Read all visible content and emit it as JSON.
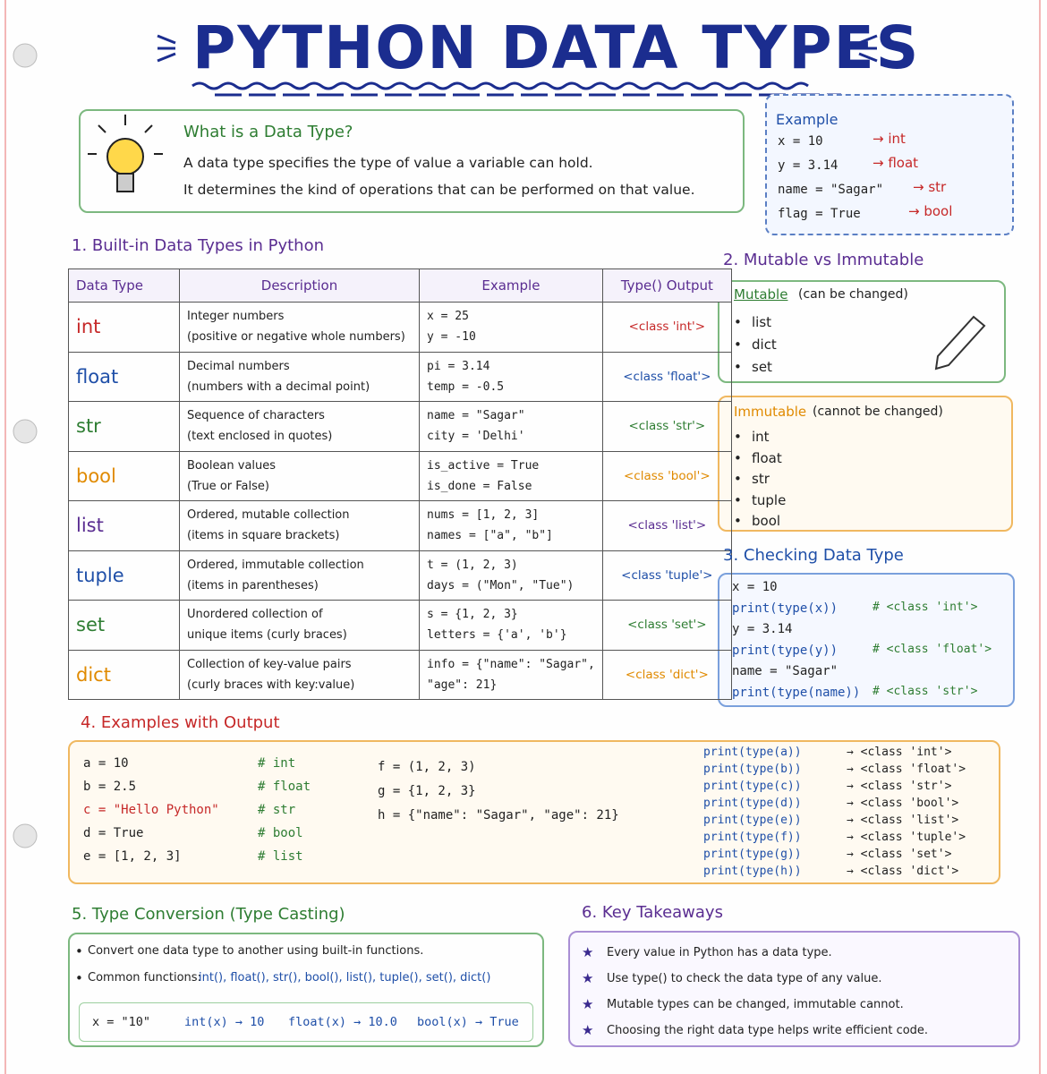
{
  "title": "PYTHON DATA TYPES",
  "intro": {
    "heading": "What is a Data Type?",
    "lines": [
      "A data type specifies the type of value a variable can hold.",
      "It determines the kind of operations that can be performed on that value."
    ]
  },
  "example": {
    "heading": "Example",
    "rows": [
      [
        "x = 10",
        "→ int"
      ],
      [
        "y = 3.14",
        "→ float"
      ],
      [
        "name = \"Sagar\"",
        "→ str"
      ],
      [
        "flag = True",
        "→ bool"
      ]
    ]
  },
  "builtin": {
    "heading": "1. Built-in Data Types in Python",
    "columns": [
      "Data Type",
      "Description",
      "Example",
      "Type() Output"
    ],
    "rows": [
      {
        "type": "int",
        "desc": [
          "Integer numbers",
          "(positive or negative whole numbers)"
        ],
        "example": [
          "x = 25",
          "y = -10"
        ],
        "output": "<class 'int'>"
      },
      {
        "type": "float",
        "desc": [
          "Decimal numbers",
          "(numbers with a decimal point)"
        ],
        "example": [
          "pi = 3.14",
          "temp = -0.5"
        ],
        "output": "<class 'float'>"
      },
      {
        "type": "str",
        "desc": [
          "Sequence of characters",
          "(text enclosed in quotes)"
        ],
        "example": [
          "name = \"Sagar\"",
          "city = 'Delhi'"
        ],
        "output": "<class 'str'>"
      },
      {
        "type": "bool",
        "desc": [
          "Boolean values",
          "(True or False)"
        ],
        "example": [
          "is_active = True",
          "is_done = False"
        ],
        "output": "<class 'bool'>"
      },
      {
        "type": "list",
        "desc": [
          "Ordered, mutable collection",
          "(items in square brackets)"
        ],
        "example": [
          "nums = [1, 2, 3]",
          "names = [\"a\", \"b\"]"
        ],
        "output": "<class 'list'>"
      },
      {
        "type": "tuple",
        "desc": [
          "Ordered, immutable collection",
          "(items in parentheses)"
        ],
        "example": [
          "t = (1, 2, 3)",
          "days = (\"Mon\", \"Tue\")"
        ],
        "output": "<class 'tuple'>"
      },
      {
        "type": "set",
        "desc": [
          "Unordered collection of",
          "unique items (curly braces)"
        ],
        "example": [
          "s = {1, 2, 3}",
          "letters = {'a', 'b'}"
        ],
        "output": "<class 'set'>"
      },
      {
        "type": "dict",
        "desc": [
          "Collection of key-value pairs",
          "(curly braces with key:value)"
        ],
        "example": [
          "info = {\"name\": \"Sagar\",",
          "\"age\": 21}"
        ],
        "output": "<class 'dict'>"
      }
    ]
  },
  "mutability": {
    "heading": "2. Mutable vs Immutable",
    "mutable_label": "Mutable",
    "mutable_note": "(can be changed)",
    "mutable_items": [
      "list",
      "dict",
      "set"
    ],
    "immutable_label": "Immutable",
    "immutable_note": "(cannot be changed)",
    "immutable_items": [
      "int",
      "float",
      "str",
      "tuple",
      "bool"
    ]
  },
  "checking": {
    "heading": "3. Checking Data Type",
    "lines": [
      "x = 10",
      "print(type(x))",
      "y = 3.14",
      "print(type(y))",
      "name = \"Sagar\"",
      "print(type(name))"
    ],
    "comments": [
      "# <class 'int'>",
      "# <class 'float'>",
      "# <class 'str'>"
    ]
  },
  "examples": {
    "heading": "4. Examples with Output",
    "assignments": [
      [
        "a = 10",
        "# int"
      ],
      [
        "b = 2.5",
        "# float"
      ],
      [
        "c = \"Hello Python\"",
        "# str"
      ],
      [
        "d = True",
        "# bool"
      ],
      [
        "e = [1, 2, 3]",
        "# list"
      ]
    ],
    "more": [
      "f = (1, 2, 3)",
      "g = {1, 2, 3}",
      "h = {\"name\": \"Sagar\", \"age\": 21}"
    ],
    "prints": [
      [
        "print(type(a))",
        "→ <class 'int'>"
      ],
      [
        "print(type(b))",
        "→ <class 'float'>"
      ],
      [
        "print(type(c))",
        "→ <class 'str'>"
      ],
      [
        "print(type(d))",
        "→ <class 'bool'>"
      ],
      [
        "print(type(e))",
        "→ <class 'list'>"
      ],
      [
        "print(type(f))",
        "→ <class 'tuple'>"
      ],
      [
        "print(type(g))",
        "→ <class 'set'>"
      ],
      [
        "print(type(h))",
        "→ <class 'dict'>"
      ]
    ]
  },
  "conversion": {
    "heading": "5. Type Conversion (Type Casting)",
    "bullets": [
      "Convert one data type to another using built-in functions.",
      "Common functions:"
    ],
    "functions": "int(), float(), str(), bool(), list(), tuple(), set(), dict()",
    "example": [
      "x = \"10\"",
      "int(x) → 10",
      "float(x) → 10.0",
      "bool(x) → True"
    ]
  },
  "takeaways": {
    "heading": "6. Key Takeaways",
    "items": [
      "Every value in Python has a data type.",
      "Use type() to check the data type of any value.",
      "Mutable types can be changed, immutable cannot.",
      "Choosing the right data type helps write efficient code."
    ]
  }
}
